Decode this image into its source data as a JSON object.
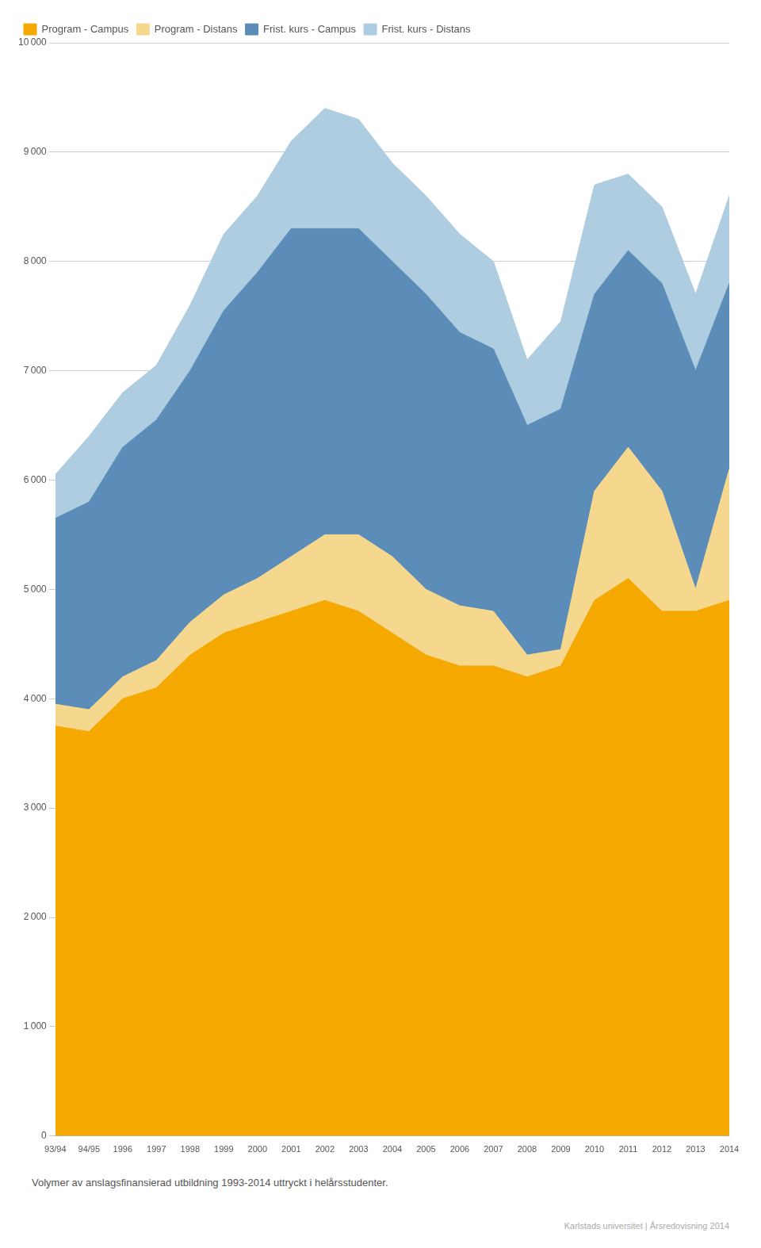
{
  "chart_data": {
    "type": "area",
    "stacked": true,
    "categories": [
      "93/94",
      "94/95",
      "1996",
      "1997",
      "1998",
      "1999",
      "2000",
      "2001",
      "2002",
      "2003",
      "2004",
      "2005",
      "2006",
      "2007",
      "2008",
      "2009",
      "2010",
      "2011",
      "2012",
      "2013",
      "2014"
    ],
    "series": [
      {
        "name": "Program - Campus",
        "color": "#F5A800",
        "values": [
          3750,
          3700,
          4000,
          4100,
          4400,
          4600,
          4700,
          4800,
          4900,
          4800,
          4600,
          4400,
          4300,
          4300,
          4200,
          4300,
          4900,
          5100,
          4800,
          4800,
          4900
        ]
      },
      {
        "name": "Program - Distans",
        "color": "#F5D78E",
        "values": [
          200,
          200,
          200,
          250,
          300,
          350,
          400,
          500,
          600,
          700,
          700,
          600,
          550,
          500,
          200,
          150,
          1000,
          1200,
          1100,
          200,
          1200
        ]
      },
      {
        "name": "Frist. kurs - Campus",
        "color": "#5B8DB8",
        "values": [
          1700,
          1900,
          2100,
          2200,
          2300,
          2600,
          2800,
          3000,
          2800,
          2800,
          2700,
          2700,
          2500,
          2400,
          2100,
          2200,
          1800,
          1800,
          1900,
          2000,
          1700
        ]
      },
      {
        "name": "Frist. kurs - Distans",
        "color": "#AECDE0",
        "values": [
          400,
          600,
          500,
          500,
          600,
          700,
          700,
          800,
          1100,
          1000,
          900,
          900,
          900,
          800,
          600,
          800,
          1000,
          700,
          700,
          700,
          800
        ]
      }
    ],
    "ylim": [
      0,
      10000
    ],
    "yticks": [
      0,
      {
        "value": 1000,
        "label": "1 000"
      },
      {
        "value": 2000,
        "label": "2 000"
      },
      {
        "value": 3000,
        "label": "3 000"
      },
      {
        "value": 4000,
        "label": "4 000"
      },
      {
        "value": 5000,
        "label": "5 000"
      },
      {
        "value": 6000,
        "label": "6 000"
      },
      {
        "value": 7000,
        "label": "7 000"
      },
      {
        "value": 8000,
        "label": "8 000"
      },
      {
        "value": 9000,
        "label": "9 000"
      },
      {
        "value": 10000,
        "label": "10 000"
      }
    ],
    "grid": true,
    "legend": "upper left",
    "annotations": [
      "Volymer av anslagsfinansierad utbildning 1993-2014 uttryckt i helårsstudenter.",
      "Karlstads universitet  |  Årsredovisning 2014"
    ]
  }
}
